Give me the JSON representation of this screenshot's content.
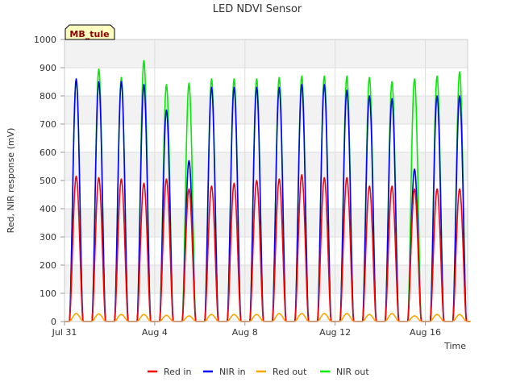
{
  "chart_data": {
    "type": "line",
    "title": "LED NDVI Sensor",
    "xlabel": "Time",
    "ylabel": "Red, NIR response (mV)",
    "site_tag": "MB_tule",
    "x_unit": "date",
    "xlim": [
      "2023-07-31",
      "2023-08-17T21:00"
    ],
    "ylim": [
      0,
      1000
    ],
    "y_ticks": [
      0,
      100,
      200,
      300,
      400,
      500,
      600,
      700,
      800,
      900,
      1000
    ],
    "x_ticks": [
      {
        "date": "2023-07-31",
        "label": "Jul 31"
      },
      {
        "date": "2023-08-04",
        "label": "Aug 4"
      },
      {
        "date": "2023-08-08",
        "label": "Aug 8"
      },
      {
        "date": "2023-08-12",
        "label": "Aug 12"
      },
      {
        "date": "2023-08-16",
        "label": "Aug 16"
      }
    ],
    "grid": true,
    "legend_position": "bottom",
    "days": [
      "2023-07-31",
      "2023-08-01",
      "2023-08-02",
      "2023-08-03",
      "2023-08-04",
      "2023-08-05",
      "2023-08-06",
      "2023-08-07",
      "2023-08-08",
      "2023-08-09",
      "2023-08-10",
      "2023-08-11",
      "2023-08-12",
      "2023-08-13",
      "2023-08-14",
      "2023-08-15",
      "2023-08-16",
      "2023-08-17"
    ],
    "series": [
      {
        "name": "Red in",
        "color": "#ff0000",
        "daily_peak": [
          515,
          510,
          505,
          490,
          505,
          470,
          480,
          490,
          500,
          505,
          520,
          510,
          510,
          480,
          480,
          470,
          470,
          470
        ]
      },
      {
        "name": "NIR in",
        "color": "#0000ff",
        "daily_peak": [
          860,
          850,
          850,
          840,
          750,
          570,
          830,
          830,
          830,
          830,
          840,
          840,
          820,
          800,
          790,
          540,
          800,
          800
        ]
      },
      {
        "name": "Red out",
        "color": "#ffa500",
        "daily_peak": [
          28,
          27,
          25,
          25,
          22,
          20,
          25,
          25,
          25,
          28,
          28,
          28,
          28,
          25,
          28,
          20,
          25,
          25
        ]
      },
      {
        "name": "NIR out",
        "color": "#00ee00",
        "daily_peak": [
          860,
          895,
          865,
          925,
          840,
          845,
          860,
          860,
          860,
          865,
          870,
          870,
          870,
          865,
          850,
          860,
          870,
          885
        ]
      }
    ]
  },
  "legend": {
    "items": [
      {
        "label": "Red in",
        "color": "#ff0000"
      },
      {
        "label": "NIR in",
        "color": "#0000ff"
      },
      {
        "label": "Red out",
        "color": "#ffa500"
      },
      {
        "label": "NIR out",
        "color": "#00ee00"
      }
    ]
  }
}
